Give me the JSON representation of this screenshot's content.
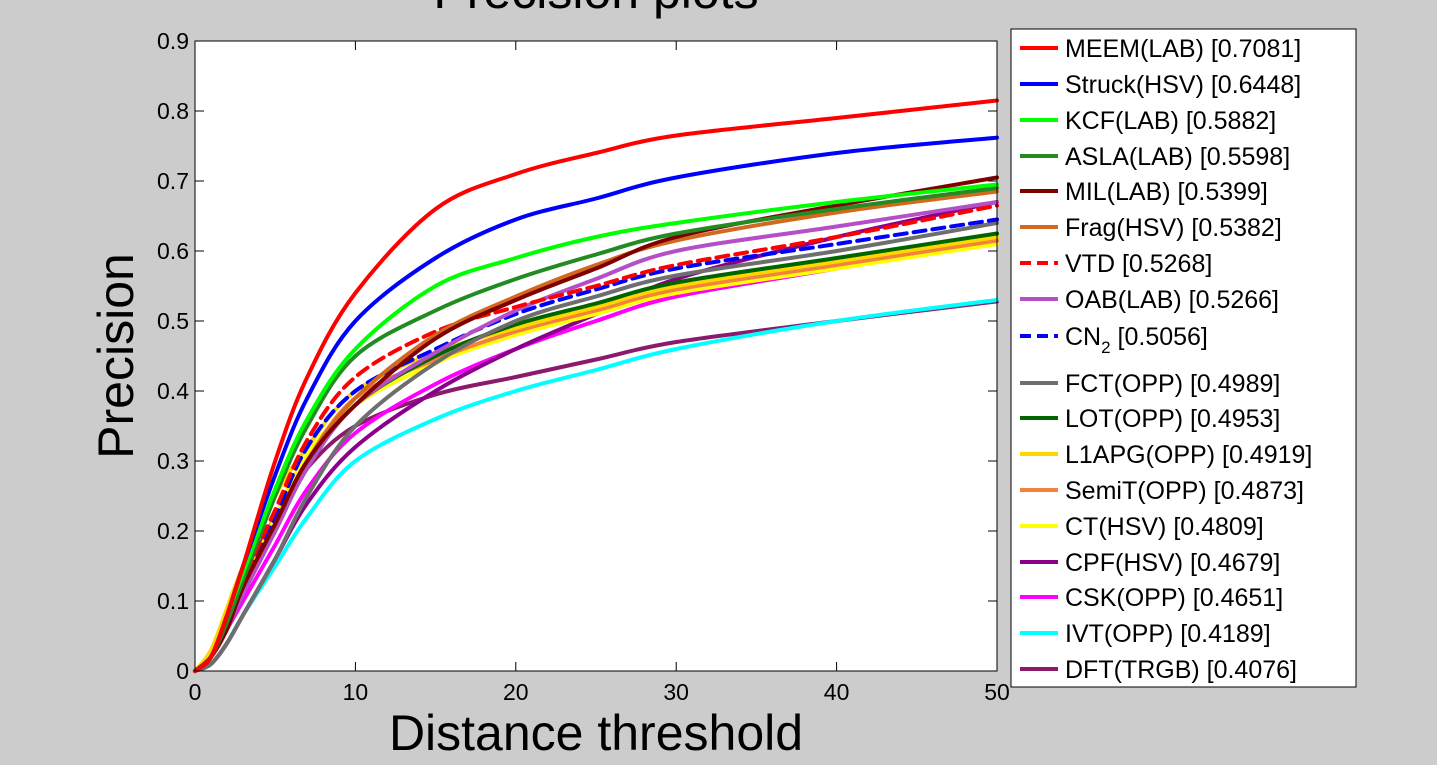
{
  "chart_data": {
    "type": "line",
    "title": "Precision plots",
    "xlabel": "Distance threshold",
    "ylabel": "Precision",
    "xlim": [
      0,
      50
    ],
    "ylim": [
      0,
      0.9
    ],
    "xticks": [
      0,
      10,
      20,
      30,
      40,
      50
    ],
    "yticks": [
      0,
      0.1,
      0.2,
      0.3,
      0.4,
      0.5,
      0.6,
      0.7,
      0.8,
      0.9
    ],
    "legend_position": "outside-right",
    "x": [
      0,
      1,
      2,
      3,
      5,
      7,
      10,
      15,
      20,
      25,
      30,
      40,
      50
    ],
    "series": [
      {
        "name": "MEEM(LAB) [0.7081]",
        "color": "#ff0000",
        "dash": "solid",
        "values": [
          0,
          0.02,
          0.08,
          0.15,
          0.3,
          0.42,
          0.54,
          0.66,
          0.71,
          0.74,
          0.765,
          0.79,
          0.815
        ]
      },
      {
        "name": "Struck(HSV) [0.6448]",
        "color": "#0000ff",
        "dash": "solid",
        "values": [
          0,
          0.02,
          0.08,
          0.15,
          0.28,
          0.39,
          0.5,
          0.59,
          0.645,
          0.675,
          0.705,
          0.74,
          0.762
        ]
      },
      {
        "name": "KCF(LAB) [0.5882]",
        "color": "#00ff00",
        "dash": "solid",
        "values": [
          0,
          0.02,
          0.08,
          0.14,
          0.26,
          0.36,
          0.46,
          0.55,
          0.59,
          0.62,
          0.64,
          0.67,
          0.695
        ]
      },
      {
        "name": "ASLA(LAB) [0.5598]",
        "color": "#228b22",
        "dash": "solid",
        "values": [
          0,
          0.02,
          0.07,
          0.13,
          0.25,
          0.35,
          0.45,
          0.515,
          0.56,
          0.595,
          0.625,
          0.66,
          0.69
        ]
      },
      {
        "name": "MIL(LAB) [0.5399]",
        "color": "#800000",
        "dash": "solid",
        "values": [
          0,
          0.02,
          0.06,
          0.12,
          0.21,
          0.3,
          0.38,
          0.475,
          0.53,
          0.575,
          0.62,
          0.665,
          0.705
        ]
      },
      {
        "name": "Frag(HSV) [0.5382]",
        "color": "#d2691e",
        "dash": "solid",
        "values": [
          0,
          0.02,
          0.07,
          0.12,
          0.21,
          0.3,
          0.39,
          0.48,
          0.535,
          0.58,
          0.615,
          0.655,
          0.685
        ]
      },
      {
        "name": "VTD [0.5268]",
        "color": "#ff0000",
        "dash": "dashed",
        "values": [
          0,
          0.02,
          0.07,
          0.13,
          0.23,
          0.33,
          0.42,
          0.485,
          0.52,
          0.55,
          0.58,
          0.62,
          0.665
        ]
      },
      {
        "name": "OAB(LAB) [0.5266]",
        "color": "#b44fc8",
        "dash": "solid",
        "values": [
          0,
          0.02,
          0.06,
          0.11,
          0.2,
          0.29,
          0.38,
          0.455,
          0.515,
          0.56,
          0.6,
          0.635,
          0.67
        ]
      },
      {
        "name": "CN",
        "name_sub": "2",
        "name_rest": " [0.5056]",
        "color": "#0000ff",
        "dash": "dashed",
        "values": [
          0,
          0.02,
          0.07,
          0.12,
          0.22,
          0.32,
          0.4,
          0.46,
          0.51,
          0.545,
          0.575,
          0.61,
          0.645
        ]
      },
      {
        "name": "FCT(OPP) [0.4989]",
        "color": "#6e6e6e",
        "dash": "solid",
        "values": [
          0,
          0.01,
          0.04,
          0.08,
          0.16,
          0.25,
          0.35,
          0.44,
          0.5,
          0.535,
          0.565,
          0.6,
          0.64
        ]
      },
      {
        "name": "LOT(OPP) [0.4953]",
        "color": "#006400",
        "dash": "solid",
        "values": [
          0,
          0.02,
          0.06,
          0.11,
          0.2,
          0.29,
          0.38,
          0.45,
          0.495,
          0.525,
          0.555,
          0.59,
          0.625
        ]
      },
      {
        "name": "L1APG(OPP) [0.4919]",
        "color": "#ffd700",
        "dash": "solid",
        "values": [
          0,
          0.03,
          0.09,
          0.15,
          0.25,
          0.32,
          0.4,
          0.455,
          0.49,
          0.52,
          0.55,
          0.585,
          0.62
        ]
      },
      {
        "name": "SemiT(OPP) [0.4873]",
        "color": "#f4823c",
        "dash": "solid",
        "values": [
          0,
          0.02,
          0.07,
          0.12,
          0.21,
          0.3,
          0.39,
          0.445,
          0.485,
          0.515,
          0.545,
          0.58,
          0.615
        ]
      },
      {
        "name": "CT(HSV) [0.4809]",
        "color": "#ffff00",
        "dash": "solid",
        "values": [
          0,
          0.02,
          0.07,
          0.12,
          0.22,
          0.31,
          0.38,
          0.44,
          0.48,
          0.51,
          0.54,
          0.575,
          0.61
        ]
      },
      {
        "name": "CPF(HSV) [0.4679]",
        "color": "#8b008b",
        "dash": "solid",
        "values": [
          0,
          0.01,
          0.04,
          0.08,
          0.16,
          0.24,
          0.32,
          0.4,
          0.46,
          0.51,
          0.56,
          0.62,
          0.67
        ]
      },
      {
        "name": "CSK(OPP) [0.4651]",
        "color": "#ff00ff",
        "dash": "solid",
        "values": [
          0,
          0.02,
          0.06,
          0.1,
          0.18,
          0.26,
          0.34,
          0.41,
          0.46,
          0.5,
          0.535,
          0.575,
          0.615
        ]
      },
      {
        "name": "IVT(OPP) [0.4189]",
        "color": "#00ffff",
        "dash": "solid",
        "values": [
          0,
          0.01,
          0.04,
          0.08,
          0.15,
          0.22,
          0.3,
          0.36,
          0.4,
          0.43,
          0.46,
          0.5,
          0.53
        ]
      },
      {
        "name": "DFT(TRGB) [0.4076]",
        "color": "#8b1a6b",
        "dash": "solid",
        "values": [
          0,
          0.02,
          0.07,
          0.13,
          0.22,
          0.29,
          0.35,
          0.395,
          0.42,
          0.445,
          0.47,
          0.5,
          0.528
        ]
      }
    ]
  }
}
